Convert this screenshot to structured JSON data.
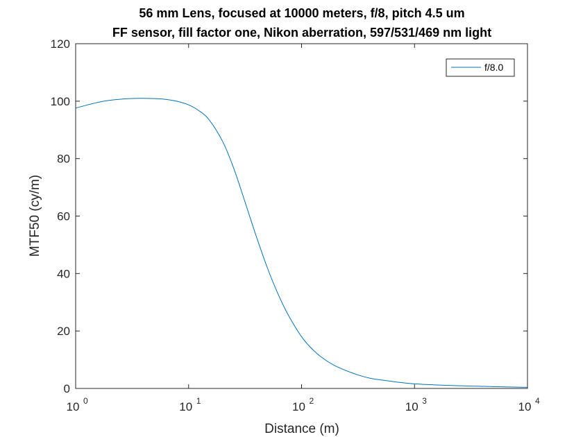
{
  "chart_data": {
    "type": "line",
    "title": [
      "56 mm Lens, focused at 10000 meters, f/8, pitch 4.5 um",
      "FF sensor, fill factor one, Nikon aberration, 597/531/469 nm light"
    ],
    "xlabel": "Distance (m)",
    "ylabel": "MTF50 (cy/m)",
    "xscale": "log",
    "xlim": [
      1,
      10000
    ],
    "ylim": [
      0,
      120
    ],
    "xticks": [
      {
        "value": 1,
        "base": "10",
        "exp": "0"
      },
      {
        "value": 10,
        "base": "10",
        "exp": "1"
      },
      {
        "value": 100,
        "base": "10",
        "exp": "2"
      },
      {
        "value": 1000,
        "base": "10",
        "exp": "3"
      },
      {
        "value": 10000,
        "base": "10",
        "exp": "4"
      }
    ],
    "yticks": [
      {
        "value": 0,
        "label": "0"
      },
      {
        "value": 20,
        "label": "20"
      },
      {
        "value": 40,
        "label": "40"
      },
      {
        "value": 60,
        "label": "60"
      },
      {
        "value": 80,
        "label": "80"
      },
      {
        "value": 100,
        "label": "100"
      },
      {
        "value": 120,
        "label": "120"
      }
    ],
    "grid": false,
    "legend_position": "top-right",
    "series": [
      {
        "name": "f/8.0",
        "color": "#0072bd",
        "x": [
          1,
          1.5,
          2,
          3,
          4,
          5,
          6,
          8,
          10,
          12,
          15,
          20,
          25,
          30,
          35,
          40,
          50,
          60,
          70,
          80,
          100,
          120,
          150,
          200,
          300,
          400,
          500,
          700,
          1000,
          1500,
          2000,
          3000,
          5000,
          7000,
          10000
        ],
        "y": [
          97.6,
          99.4,
          100.3,
          100.9,
          101.0,
          100.9,
          100.7,
          99.9,
          98.7,
          97.0,
          93.8,
          86.0,
          76.8,
          67.6,
          59.5,
          52.6,
          41.8,
          34.1,
          28.4,
          24.1,
          18.0,
          14.3,
          10.9,
          7.8,
          5.0,
          3.6,
          3.0,
          2.2,
          1.6,
          1.25,
          1.05,
          0.85,
          0.62,
          0.5,
          0.4
        ]
      }
    ]
  }
}
